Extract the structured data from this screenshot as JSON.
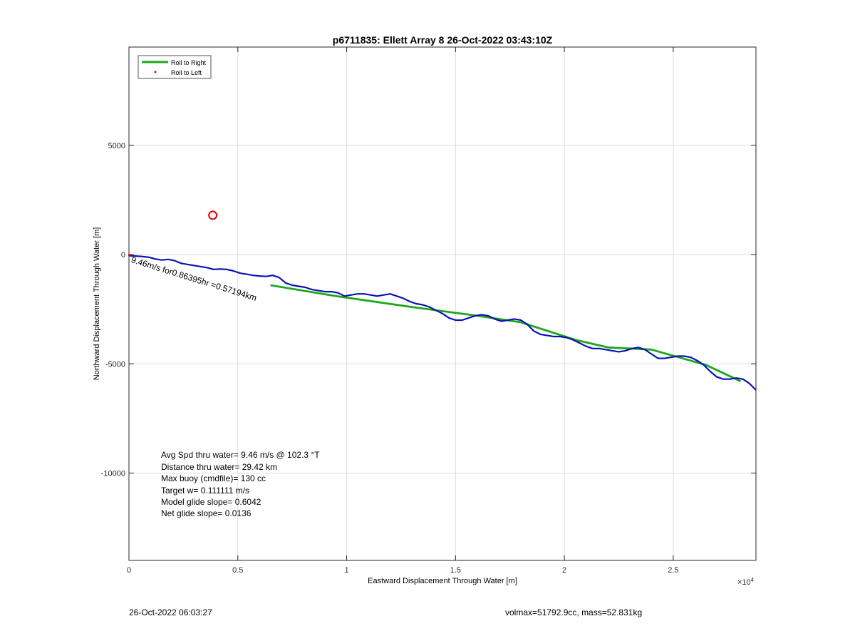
{
  "chart_data": {
    "type": "line",
    "title": "p6711835: Ellett Array 8 26-Oct-2022 03:43:10Z",
    "xlabel": "Eastward Displacement Through Water [m]",
    "ylabel": "Northward Displacement Through Water [m]",
    "x_exponent_label": "×10",
    "x_exponent_power": "4",
    "xlim": [
      0,
      28800
    ],
    "ylim": [
      -14000,
      9500
    ],
    "x_ticks": [
      {
        "value": 0,
        "label": "0"
      },
      {
        "value": 5000,
        "label": "0.5"
      },
      {
        "value": 10000,
        "label": "1"
      },
      {
        "value": 15000,
        "label": "1.5"
      },
      {
        "value": 20000,
        "label": "2"
      },
      {
        "value": 25000,
        "label": "2.5"
      }
    ],
    "y_ticks": [
      {
        "value": 5000,
        "label": "5000"
      },
      {
        "value": 0,
        "label": "0"
      },
      {
        "value": -5000,
        "label": "-5000"
      },
      {
        "value": -10000,
        "label": "-10000"
      }
    ],
    "grid": true,
    "legend": {
      "placement": "top-left",
      "entries": [
        {
          "label": "Roll to Right",
          "color": "#1aa81a",
          "marker": "line"
        },
        {
          "label": "Roll to Left",
          "color": "#e00000",
          "marker": "dot"
        }
      ]
    },
    "series": [
      {
        "name": "Roll to Right",
        "color": "#1aa81a",
        "x": [
          6500,
          9500,
          13000,
          16000,
          18000,
          20500,
          22000,
          24000,
          26500,
          28100
        ],
        "y": [
          -1400,
          -1900,
          -2400,
          -2800,
          -3100,
          -3900,
          -4250,
          -4350,
          -5050,
          -5800
        ]
      },
      {
        "name": "",
        "color": "#0a12b4",
        "x": [
          0,
          500,
          900,
          1200,
          1500,
          1800,
          2100,
          2400,
          2700,
          3000,
          3300,
          3600,
          3900,
          4200,
          4500,
          4800,
          5100,
          5400,
          5700,
          6000,
          6300,
          6600,
          6900,
          7200,
          7500,
          7800,
          8100,
          8400,
          8700,
          9000,
          9300,
          9600,
          9900,
          10200,
          10500,
          10800,
          11100,
          11400,
          11700,
          12000,
          12300,
          12600,
          12900,
          13200,
          13500,
          13800,
          14100,
          14400,
          14700,
          15000,
          15300,
          15600,
          15900,
          16200,
          16500,
          16800,
          17100,
          17400,
          17700,
          18000,
          18300,
          18600,
          18900,
          19200,
          19500,
          19800,
          20100,
          20400,
          20700,
          21000,
          21300,
          21600,
          21900,
          22200,
          22500,
          22800,
          23100,
          23400,
          23700,
          24000,
          24300,
          24600,
          24900,
          25200,
          25500,
          25800,
          26100,
          26400,
          26700,
          27000,
          27300,
          27600,
          27900,
          28200,
          28500,
          28800
        ],
        "y": [
          -50,
          -80,
          -120,
          -200,
          -250,
          -220,
          -280,
          -400,
          -450,
          -500,
          -550,
          -600,
          -680,
          -660,
          -680,
          -750,
          -850,
          -900,
          -950,
          -980,
          -1000,
          -950,
          -1050,
          -1300,
          -1400,
          -1450,
          -1500,
          -1600,
          -1650,
          -1700,
          -1700,
          -1750,
          -1900,
          -1850,
          -1800,
          -1800,
          -1850,
          -1900,
          -1850,
          -1800,
          -1900,
          -2000,
          -2150,
          -2250,
          -2300,
          -2400,
          -2550,
          -2700,
          -2900,
          -3000,
          -3000,
          -2900,
          -2800,
          -2750,
          -2800,
          -2950,
          -3050,
          -3000,
          -2950,
          -3000,
          -3200,
          -3500,
          -3650,
          -3700,
          -3750,
          -3750,
          -3800,
          -3900,
          -4050,
          -4200,
          -4300,
          -4300,
          -4350,
          -4400,
          -4450,
          -4400,
          -4300,
          -4250,
          -4350,
          -4550,
          -4750,
          -4750,
          -4700,
          -4650,
          -4650,
          -4700,
          -4850,
          -5050,
          -5350,
          -5600,
          -5700,
          -5700,
          -5650,
          -5700,
          -5900,
          -6200
        ]
      }
    ],
    "markers": [
      {
        "name": "Roll to Left",
        "x": 20,
        "y": -20,
        "color": "#e00000"
      },
      {
        "name": "",
        "x": 3850,
        "y": 1800,
        "color": "#e00000",
        "shape": "circle"
      }
    ],
    "annotation": {
      "text": "9.46m/s for0.86395hr =0.57194km",
      "x": 0,
      "y": -60
    },
    "stats": [
      "Avg Spd thru water=  9.46 m/s @ 102.3 °T",
      "Distance thru water= 29.42 km",
      "Max buoy (cmdfile)= 130 cc",
      "Target w= 0.111111 m/s",
      "Model glide slope= 0.6042",
      "Net glide slope= 0.0136"
    ]
  },
  "footer": {
    "left": "26-Oct-2022 06:03:27",
    "right": "volmax=51792.9cc, mass=52.831kg"
  }
}
